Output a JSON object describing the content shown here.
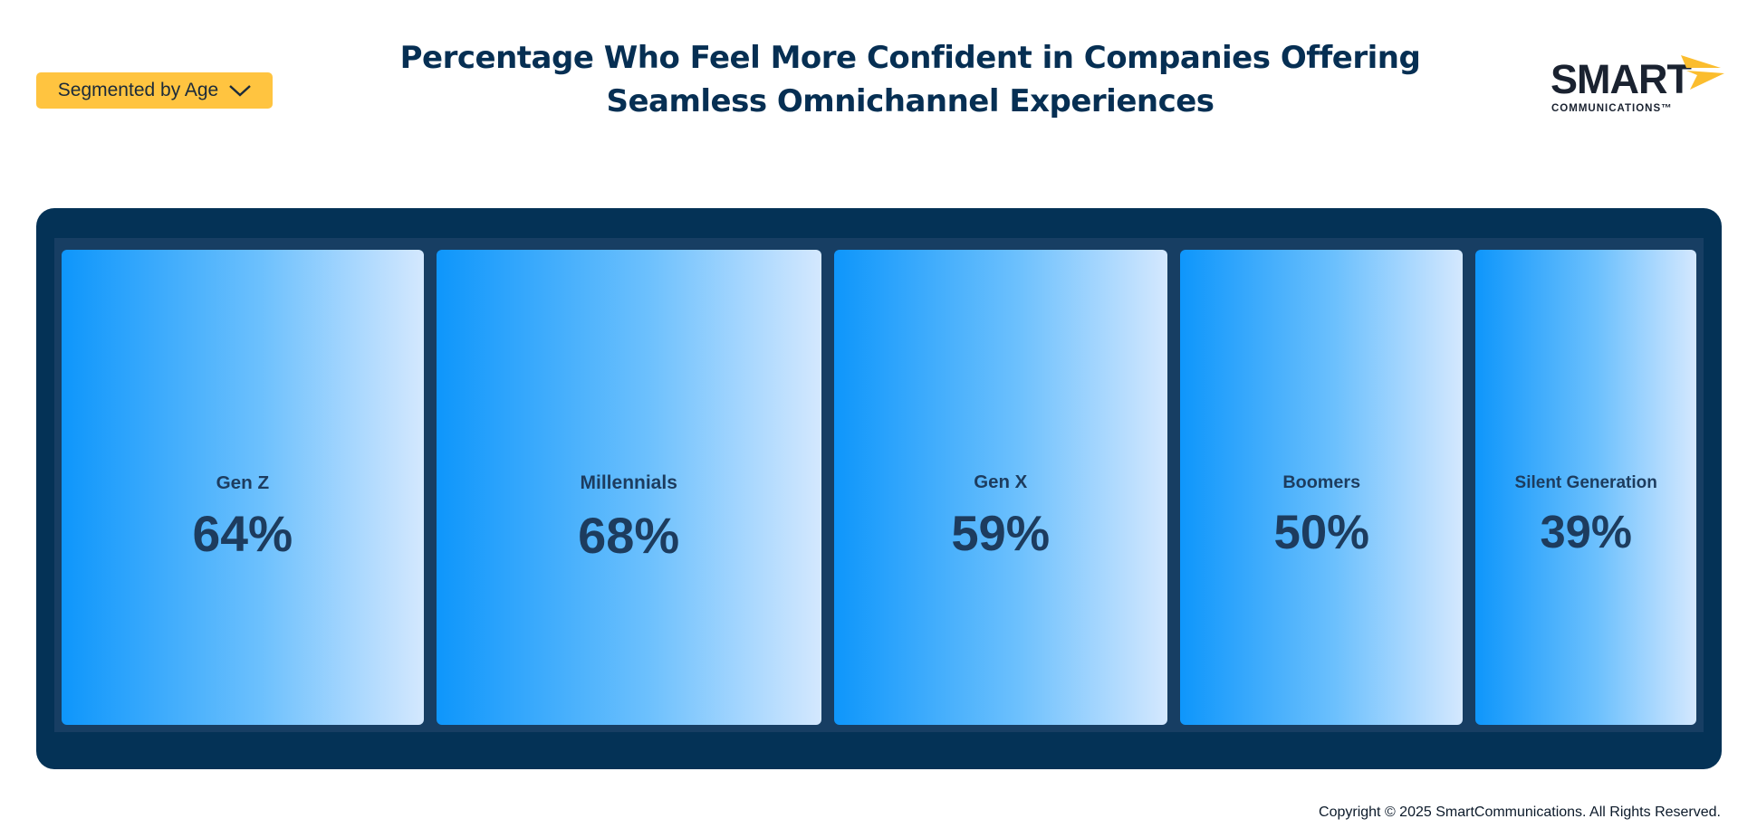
{
  "segment_selector": {
    "label": "Segmented by Age",
    "icon": "chevron-down-icon"
  },
  "header": {
    "title_line1": "Percentage Who Feel More Confident in Companies Offering",
    "title_line2": "Seamless Omnichannel Experiences"
  },
  "logo": {
    "wordmark": "SMART",
    "subline": "COMMUNICATIONS™",
    "icon": "arrow-chevrons-icon",
    "accent_color": "#fbbd2e"
  },
  "colors": {
    "title": "#062f53",
    "panel": "#043256",
    "tile_gradient_start": "#0e96fb",
    "tile_gradient_end": "#d4e8fe",
    "button": "#ffc440"
  },
  "chart_data": {
    "type": "bar",
    "title": "Percentage Who Feel More Confident in Companies Offering Seamless Omnichannel Experiences",
    "categories": [
      "Gen Z",
      "Millennials",
      "Gen X",
      "Boomers",
      "Silent Generation"
    ],
    "values": [
      64,
      68,
      59,
      50,
      39
    ],
    "value_labels": [
      "64%",
      "68%",
      "59%",
      "50%",
      "39%"
    ],
    "unit": "%",
    "encoding": "tile width proportional to value"
  },
  "footer": {
    "copyright": "Copyright © 2025 SmartCommunications. All Rights Reserved."
  }
}
